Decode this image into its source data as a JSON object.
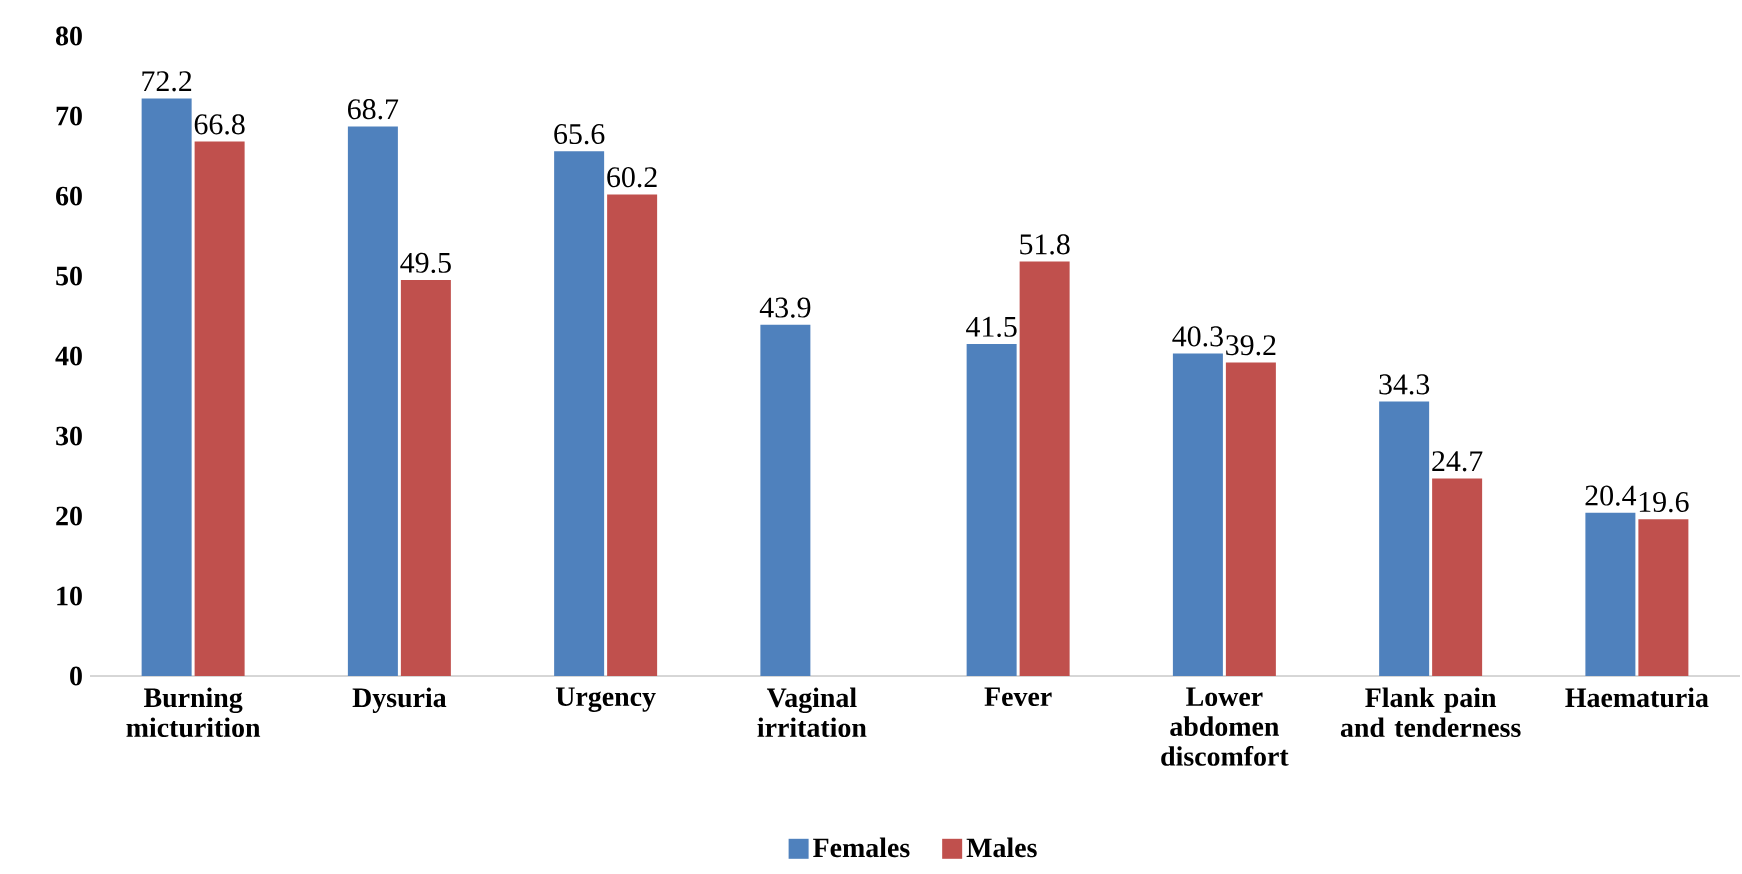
{
  "chart_data": {
    "type": "bar",
    "categories": [
      "Burning micturition",
      "Dysuria",
      "Urgency",
      "Vaginal irritation",
      "Fever",
      "Lower abdomen discomfort",
      "Flank pain and tenderness",
      "Haematuria"
    ],
    "series": [
      {
        "name": "Females",
        "color": "#4f81bd",
        "values": [
          72.2,
          68.7,
          65.6,
          43.9,
          41.5,
          40.3,
          34.3,
          20.4
        ]
      },
      {
        "name": "Males",
        "color": "#c0504d",
        "values": [
          66.8,
          49.5,
          60.2,
          null,
          51.8,
          39.2,
          24.7,
          19.6
        ]
      }
    ],
    "ylim": [
      0,
      80
    ],
    "yticks": [
      0,
      10,
      20,
      30,
      40,
      50,
      60,
      70,
      80
    ],
    "data_labels": true,
    "legend": "bottom"
  }
}
